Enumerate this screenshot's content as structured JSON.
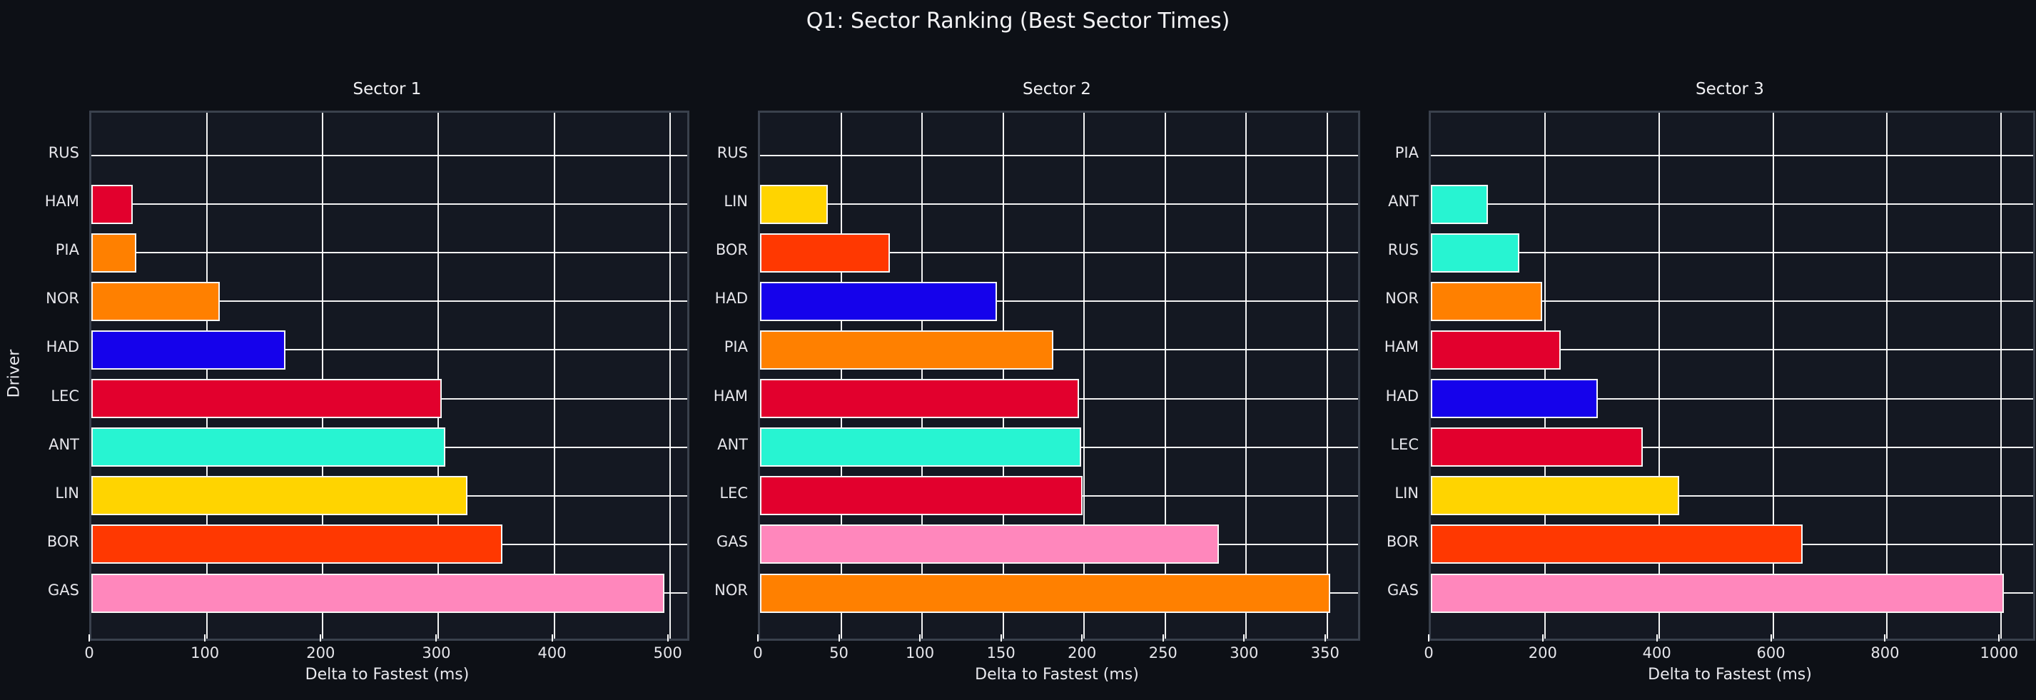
{
  "figure": {
    "title": "Q1: Sector Ranking (Best Sector Times)",
    "background_color": "#0d1016",
    "axes_background_color": "#141822",
    "grid_color": "#ffffff",
    "spine_color": "#3a414d",
    "text_color": "#e9e9ee"
  },
  "chart_data": [
    {
      "type": "bar",
      "orientation": "horizontal",
      "title": "Sector 1",
      "xlabel": "Delta to Fastest (ms)",
      "ylabel": "Driver",
      "grid": true,
      "xlim": [
        0,
        515
      ],
      "xticks": [
        0,
        100,
        200,
        300,
        400,
        500
      ],
      "categories": [
        "RUS",
        "HAM",
        "PIA",
        "NOR",
        "HAD",
        "LEC",
        "ANT",
        "LIN",
        "BOR",
        "GAS"
      ],
      "values": [
        0,
        36,
        39,
        111,
        168,
        303,
        306,
        325,
        355,
        495
      ],
      "colors": [
        "#27f4d2",
        "#e2002d",
        "#ff8000",
        "#ff8000",
        "#1502eb",
        "#e2002d",
        "#27f4d2",
        "#ffd400",
        "#ff3801",
        "#ff87bc"
      ]
    },
    {
      "type": "bar",
      "orientation": "horizontal",
      "title": "Sector 2",
      "xlabel": "Delta to Fastest (ms)",
      "ylabel": "",
      "grid": true,
      "xlim": [
        0,
        369
      ],
      "xticks": [
        0,
        50,
        100,
        150,
        200,
        250,
        300,
        350
      ],
      "categories": [
        "RUS",
        "LIN",
        "BOR",
        "HAD",
        "PIA",
        "HAM",
        "ANT",
        "LEC",
        "GAS",
        "NOR"
      ],
      "values": [
        0,
        42,
        80,
        146,
        181,
        197,
        198,
        199,
        283,
        352
      ],
      "colors": [
        "#27f4d2",
        "#ffd400",
        "#ff3801",
        "#1502eb",
        "#ff8000",
        "#e2002d",
        "#27f4d2",
        "#e2002d",
        "#ff87bc",
        "#ff8000"
      ]
    },
    {
      "type": "bar",
      "orientation": "horizontal",
      "title": "Sector 3",
      "xlabel": "Delta to Fastest (ms)",
      "ylabel": "",
      "grid": true,
      "xlim": [
        0,
        1056
      ],
      "xticks": [
        0,
        200,
        400,
        600,
        800,
        1000
      ],
      "categories": [
        "PIA",
        "ANT",
        "RUS",
        "NOR",
        "HAM",
        "HAD",
        "LEC",
        "LIN",
        "BOR",
        "GAS"
      ],
      "values": [
        0,
        100,
        155,
        195,
        228,
        293,
        371,
        435,
        652,
        1005
      ],
      "colors": [
        "#ff8000",
        "#27f4d2",
        "#27f4d2",
        "#ff8000",
        "#e2002d",
        "#1502eb",
        "#e2002d",
        "#ffd400",
        "#ff3801",
        "#ff87bc"
      ]
    }
  ]
}
